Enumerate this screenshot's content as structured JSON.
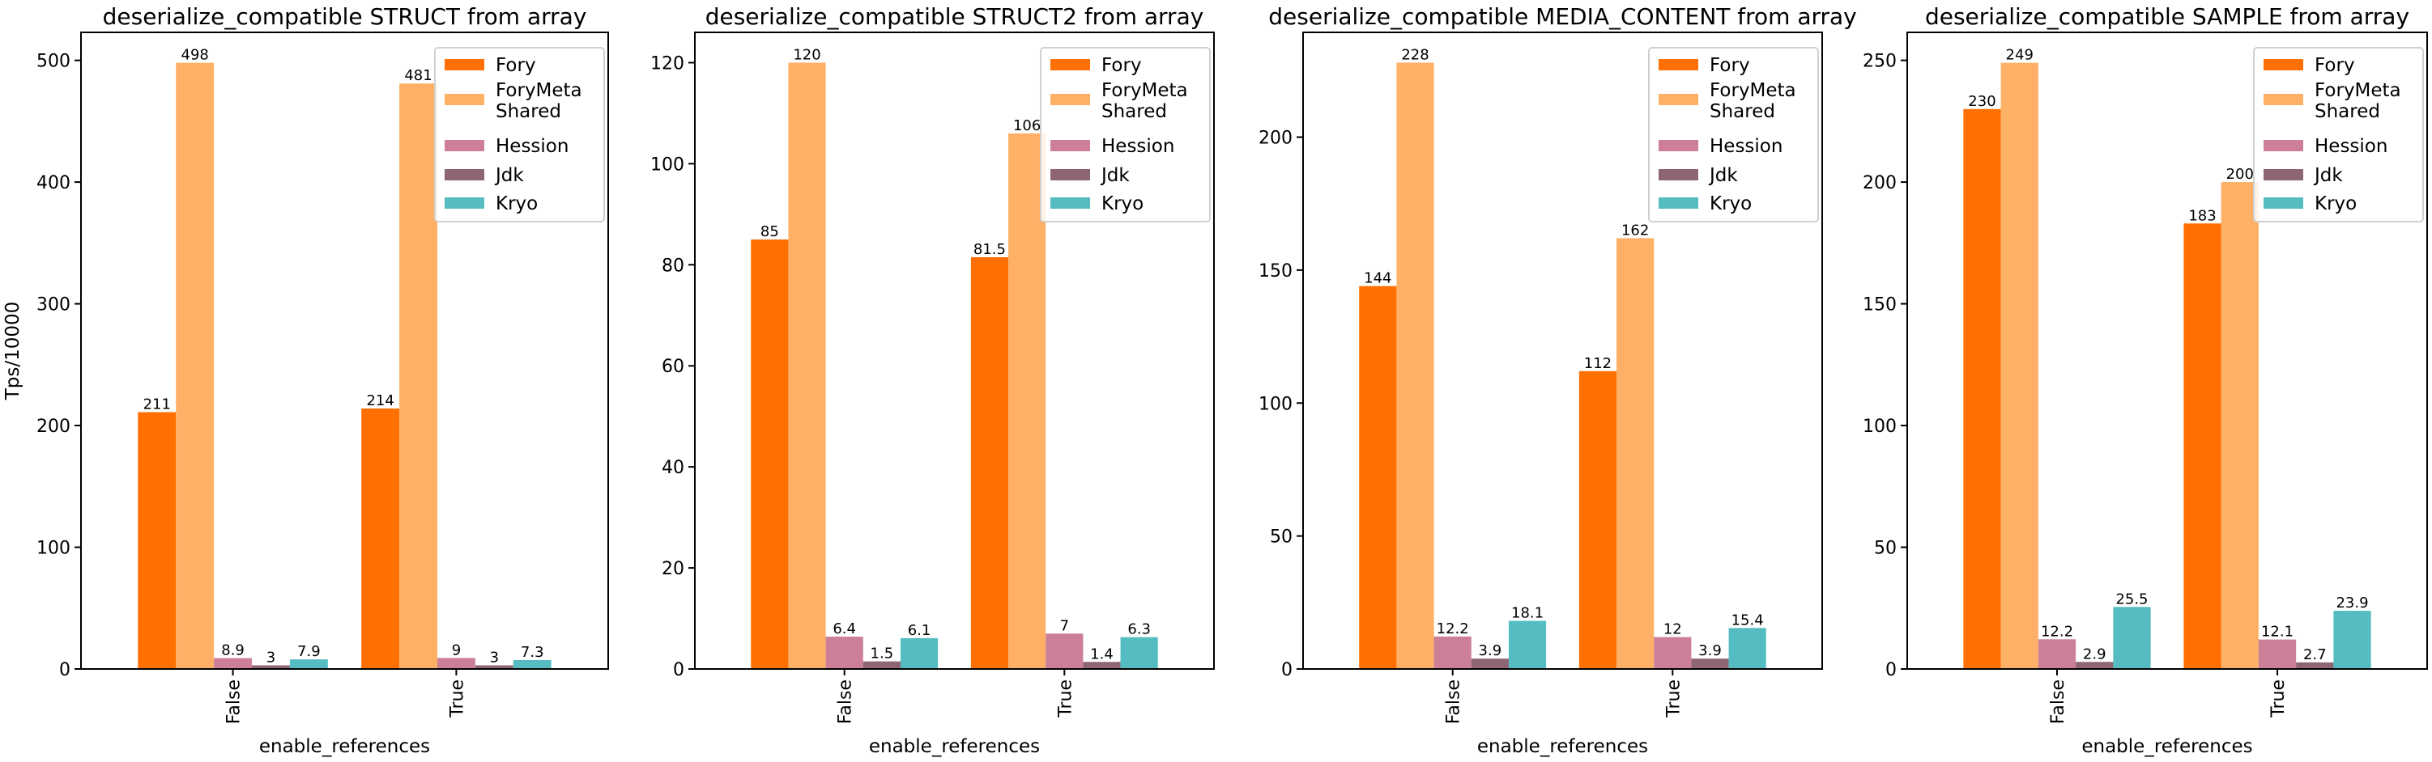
{
  "colors": {
    "Fory": "#ff6f01",
    "ForyMetaShared": "#fdb066",
    "Hession": "#cc7f97",
    "Jdk": "#8e6572",
    "Kryo": "#55bcc1"
  },
  "chart_data": [
    {
      "type": "bar",
      "title": "deserialize_compatible STRUCT from array",
      "xlabel": "enable_references",
      "ylabel": "Tps/10000",
      "categories": [
        "False",
        "True"
      ],
      "ylim": [
        0,
        523
      ],
      "yticks": [
        0,
        100,
        200,
        300,
        400,
        500
      ],
      "legend_position": "top-right",
      "series": [
        {
          "name": "Fory",
          "key": "Fory",
          "values": [
            211,
            214
          ],
          "labels": [
            "211",
            "214"
          ]
        },
        {
          "name": "ForyMeta\nShared",
          "key": "ForyMetaShared",
          "values": [
            498,
            481
          ],
          "labels": [
            "498",
            "481"
          ]
        },
        {
          "name": "Hession",
          "key": "Hession",
          "values": [
            8.9,
            9
          ],
          "labels": [
            "8.9",
            "9"
          ]
        },
        {
          "name": "Jdk",
          "key": "Jdk",
          "values": [
            3,
            3
          ],
          "labels": [
            "3",
            "3"
          ]
        },
        {
          "name": "Kryo",
          "key": "Kryo",
          "values": [
            7.9,
            7.3
          ],
          "labels": [
            "7.9",
            "7.3"
          ]
        }
      ]
    },
    {
      "type": "bar",
      "title": "deserialize_compatible STRUCT2 from array",
      "xlabel": "enable_references",
      "ylabel": "",
      "categories": [
        "False",
        "True"
      ],
      "ylim": [
        0,
        126
      ],
      "yticks": [
        0,
        20,
        40,
        60,
        80,
        100,
        120
      ],
      "legend_position": "top-right",
      "series": [
        {
          "name": "Fory",
          "key": "Fory",
          "values": [
            85,
            81.5
          ],
          "labels": [
            "85",
            "81.5"
          ]
        },
        {
          "name": "ForyMeta\nShared",
          "key": "ForyMetaShared",
          "values": [
            120,
            106
          ],
          "labels": [
            "120",
            "106"
          ]
        },
        {
          "name": "Hession",
          "key": "Hession",
          "values": [
            6.4,
            7
          ],
          "labels": [
            "6.4",
            "7"
          ]
        },
        {
          "name": "Jdk",
          "key": "Jdk",
          "values": [
            1.5,
            1.4
          ],
          "labels": [
            "1.5",
            "1.4"
          ]
        },
        {
          "name": "Kryo",
          "key": "Kryo",
          "values": [
            6.1,
            6.3
          ],
          "labels": [
            "6.1",
            "6.3"
          ]
        }
      ]
    },
    {
      "type": "bar",
      "title": "deserialize_compatible MEDIA_CONTENT from array",
      "xlabel": "enable_references",
      "ylabel": "",
      "categories": [
        "False",
        "True"
      ],
      "ylim": [
        0,
        239.4
      ],
      "yticks": [
        0,
        50,
        100,
        150,
        200
      ],
      "legend_position": "top-right",
      "series": [
        {
          "name": "Fory",
          "key": "Fory",
          "values": [
            144,
            112
          ],
          "labels": [
            "144",
            "112"
          ]
        },
        {
          "name": "ForyMeta\nShared",
          "key": "ForyMetaShared",
          "values": [
            228,
            162
          ],
          "labels": [
            "228",
            "162"
          ]
        },
        {
          "name": "Hession",
          "key": "Hession",
          "values": [
            12.2,
            12
          ],
          "labels": [
            "12.2",
            "12"
          ]
        },
        {
          "name": "Jdk",
          "key": "Jdk",
          "values": [
            3.9,
            3.9
          ],
          "labels": [
            "3.9",
            "3.9"
          ]
        },
        {
          "name": "Kryo",
          "key": "Kryo",
          "values": [
            18.1,
            15.4
          ],
          "labels": [
            "18.1",
            "15.4"
          ]
        }
      ]
    },
    {
      "type": "bar",
      "title": "deserialize_compatible SAMPLE from array",
      "xlabel": "enable_references",
      "ylabel": "",
      "categories": [
        "False",
        "True"
      ],
      "ylim": [
        0,
        261.5
      ],
      "yticks": [
        0,
        50,
        100,
        150,
        200,
        250
      ],
      "legend_position": "top-right",
      "series": [
        {
          "name": "Fory",
          "key": "Fory",
          "values": [
            230,
            183
          ],
          "labels": [
            "230",
            "183"
          ]
        },
        {
          "name": "ForyMeta\nShared",
          "key": "ForyMetaShared",
          "values": [
            249,
            200
          ],
          "labels": [
            "249",
            "200"
          ]
        },
        {
          "name": "Hession",
          "key": "Hession",
          "values": [
            12.2,
            12.1
          ],
          "labels": [
            "12.2",
            "12.1"
          ]
        },
        {
          "name": "Jdk",
          "key": "Jdk",
          "values": [
            2.9,
            2.7
          ],
          "labels": [
            "2.9",
            "2.7"
          ]
        },
        {
          "name": "Kryo",
          "key": "Kryo",
          "values": [
            25.5,
            23.9
          ],
          "labels": [
            "25.5",
            "23.9"
          ]
        }
      ]
    }
  ]
}
